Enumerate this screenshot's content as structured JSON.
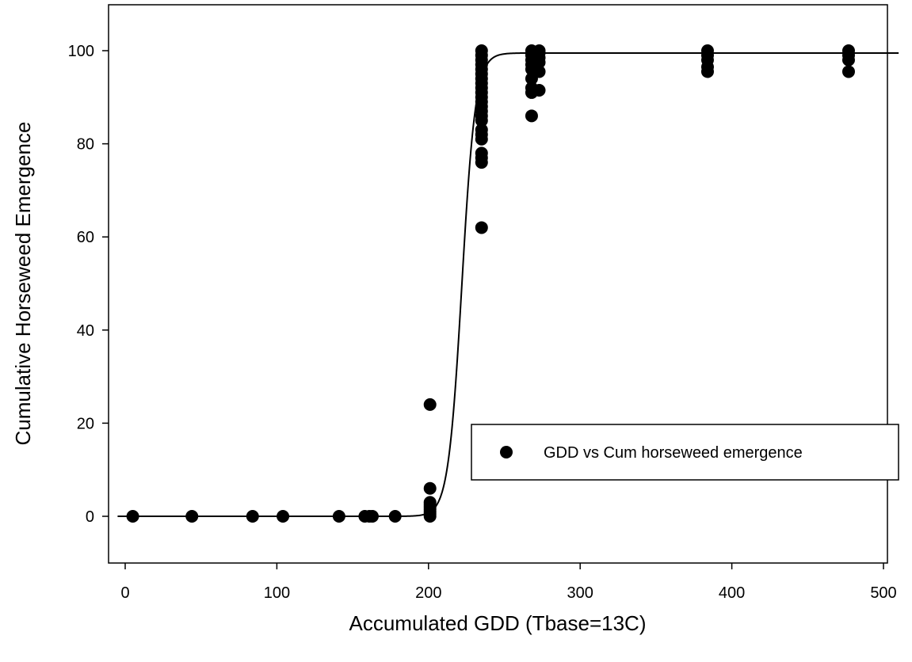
{
  "chart_data": {
    "type": "scatter",
    "xlabel": "Accumulated GDD (Tbase=13C)",
    "ylabel": "Cumulative Horseweed Emergence",
    "xlim": [
      -10,
      510
    ],
    "ylim": [
      -10,
      110
    ],
    "x_ticks": [
      0,
      100,
      200,
      300,
      400,
      500
    ],
    "y_ticks": [
      0,
      20,
      40,
      60,
      80,
      100
    ],
    "grid": false,
    "legend_position": "lower-right",
    "series": [
      {
        "name": "GDD vs Cum horseweed emergence",
        "marker": "filled-circle",
        "color": "#000000",
        "points": [
          [
            5,
            0
          ],
          [
            44,
            0
          ],
          [
            84,
            0
          ],
          [
            104,
            0
          ],
          [
            141,
            0
          ],
          [
            158,
            0
          ],
          [
            161,
            0
          ],
          [
            163,
            0
          ],
          [
            178,
            0
          ],
          [
            201,
            0
          ],
          [
            201,
            0.5
          ],
          [
            201,
            1
          ],
          [
            201,
            1.5
          ],
          [
            201,
            2
          ],
          [
            201,
            2.5
          ],
          [
            201,
            3
          ],
          [
            201,
            6
          ],
          [
            201,
            24
          ],
          [
            235,
            62
          ],
          [
            235,
            76
          ],
          [
            235,
            77
          ],
          [
            235,
            78
          ],
          [
            235,
            81
          ],
          [
            235,
            82
          ],
          [
            235,
            83
          ],
          [
            235,
            85
          ],
          [
            235,
            86
          ],
          [
            235,
            87
          ],
          [
            235,
            88
          ],
          [
            235,
            89
          ],
          [
            235,
            90
          ],
          [
            235,
            91
          ],
          [
            235,
            92
          ],
          [
            235,
            93
          ],
          [
            235,
            94
          ],
          [
            235,
            95
          ],
          [
            235,
            96
          ],
          [
            235,
            97
          ],
          [
            235,
            98
          ],
          [
            235,
            99
          ],
          [
            235,
            100
          ],
          [
            268,
            86
          ],
          [
            268,
            91
          ],
          [
            268,
            92
          ],
          [
            268,
            94
          ],
          [
            268,
            96
          ],
          [
            268,
            97
          ],
          [
            268,
            98
          ],
          [
            268,
            99
          ],
          [
            268,
            100
          ],
          [
            273,
            91.5
          ],
          [
            273,
            95.5
          ],
          [
            273,
            97.5
          ],
          [
            273,
            98.5
          ],
          [
            273,
            99.5
          ],
          [
            273,
            100
          ],
          [
            384,
            95.5
          ],
          [
            384,
            96.5
          ],
          [
            384,
            98
          ],
          [
            384,
            99
          ],
          [
            384,
            100
          ],
          [
            477,
            95.5
          ],
          [
            477,
            98
          ],
          [
            477,
            99
          ],
          [
            477,
            100
          ]
        ]
      }
    ],
    "fit_curve": {
      "type": "sigmoid",
      "max": 99.5,
      "midpoint": 222,
      "slope": 4.5
    }
  }
}
